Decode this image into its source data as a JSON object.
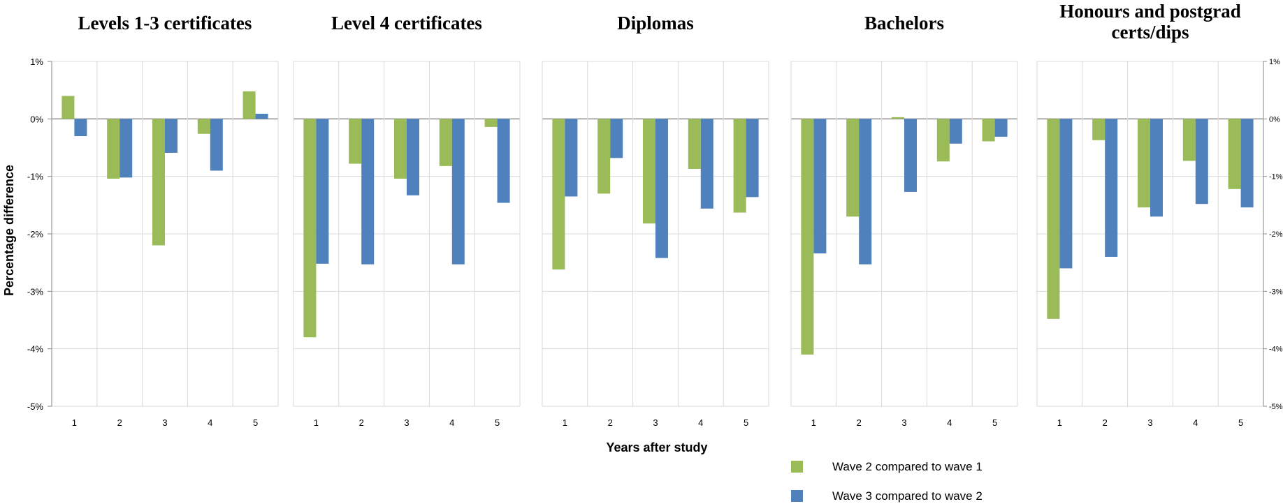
{
  "chart_data": {
    "type": "bar",
    "ylabel": "Percentage difference",
    "xlabel": "Years after study",
    "ylim": [
      -5,
      1
    ],
    "yticks": [
      "1%",
      "0%",
      "-1%",
      "-2%",
      "-3%",
      "-4%",
      "-5%"
    ],
    "categories": [
      "1",
      "2",
      "3",
      "4",
      "5"
    ],
    "grid": true,
    "legend": "bottom-right",
    "series_names": [
      "Wave 2 compared to wave 1",
      "Wave 3 compared to wave 2"
    ],
    "colors": [
      "#9bbb59",
      "#4f81bd"
    ],
    "panels": [
      {
        "title": [
          "Levels 1-3 certificates"
        ],
        "series": [
          {
            "name": "Wave 2 compared to wave 1",
            "values": [
              0.4,
              -1.04,
              -2.2,
              -0.26,
              0.48
            ]
          },
          {
            "name": "Wave 3 compared to wave 2",
            "values": [
              -0.3,
              -1.02,
              -0.59,
              -0.9,
              0.09
            ]
          }
        ]
      },
      {
        "title": [
          "Level 4 certificates"
        ],
        "series": [
          {
            "name": "Wave 2 compared to wave 1",
            "values": [
              -3.8,
              -0.78,
              -1.04,
              -0.82,
              -0.14
            ]
          },
          {
            "name": "Wave 3 compared to wave 2",
            "values": [
              -2.52,
              -2.53,
              -1.33,
              -2.53,
              -1.46
            ]
          }
        ]
      },
      {
        "title": [
          "Diplomas"
        ],
        "series": [
          {
            "name": "Wave 2 compared to wave 1",
            "values": [
              -2.62,
              -1.3,
              -1.82,
              -0.87,
              -1.63
            ]
          },
          {
            "name": "Wave 3 compared to wave 2",
            "values": [
              -1.35,
              -0.68,
              -2.42,
              -1.56,
              -1.36
            ]
          }
        ]
      },
      {
        "title": [
          "Bachelors"
        ],
        "series": [
          {
            "name": "Wave 2 compared to wave 1",
            "values": [
              -4.1,
              -1.7,
              0.03,
              -0.74,
              -0.39
            ]
          },
          {
            "name": "Wave 3 compared to wave 2",
            "values": [
              -2.34,
              -2.53,
              -1.27,
              -0.43,
              -0.31
            ]
          }
        ]
      },
      {
        "title": [
          "Honours and postgrad",
          "certs/dips"
        ],
        "series": [
          {
            "name": "Wave 2 compared to wave 1",
            "values": [
              -3.48,
              -0.37,
              -1.54,
              -0.73,
              -1.22
            ]
          },
          {
            "name": "Wave 3 compared to wave 2",
            "values": [
              -2.6,
              -2.4,
              -1.7,
              -1.48,
              -1.54
            ]
          }
        ]
      }
    ]
  }
}
